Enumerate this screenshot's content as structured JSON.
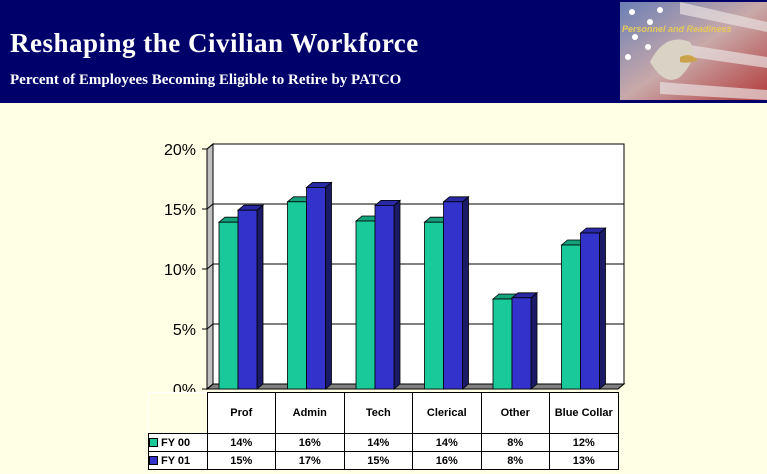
{
  "header": {
    "title": "Reshaping the Civilian Workforce",
    "subtitle": "Percent of Employees Becoming Eligible to Retire by PATCO",
    "logo_text": "Personnel and Readiness"
  },
  "chart_data": {
    "type": "bar3d",
    "categories": [
      "Prof",
      "Admin",
      "Tech",
      "Clerical",
      "Other",
      "Blue Collar"
    ],
    "series": [
      {
        "name": "FY 00",
        "color": "#19c99a",
        "values": [
          13.9,
          15.6,
          14.0,
          13.9,
          7.5,
          12.0
        ],
        "value_labels": [
          "14%",
          "16%",
          "14%",
          "14%",
          "8%",
          "12%"
        ]
      },
      {
        "name": "FY 01",
        "color": "#3333cc",
        "values": [
          14.9,
          16.8,
          15.3,
          15.6,
          7.6,
          13.0
        ],
        "value_labels": [
          "15%",
          "17%",
          "15%",
          "16%",
          "8%",
          "13%"
        ]
      }
    ],
    "ylim": [
      0,
      20
    ],
    "yticks": [
      {
        "value": 0,
        "label": "0%"
      },
      {
        "value": 5,
        "label": "5%"
      },
      {
        "value": 10,
        "label": "10%"
      },
      {
        "value": 15,
        "label": "15%"
      },
      {
        "value": 20,
        "label": "20%"
      }
    ],
    "grid": true
  }
}
